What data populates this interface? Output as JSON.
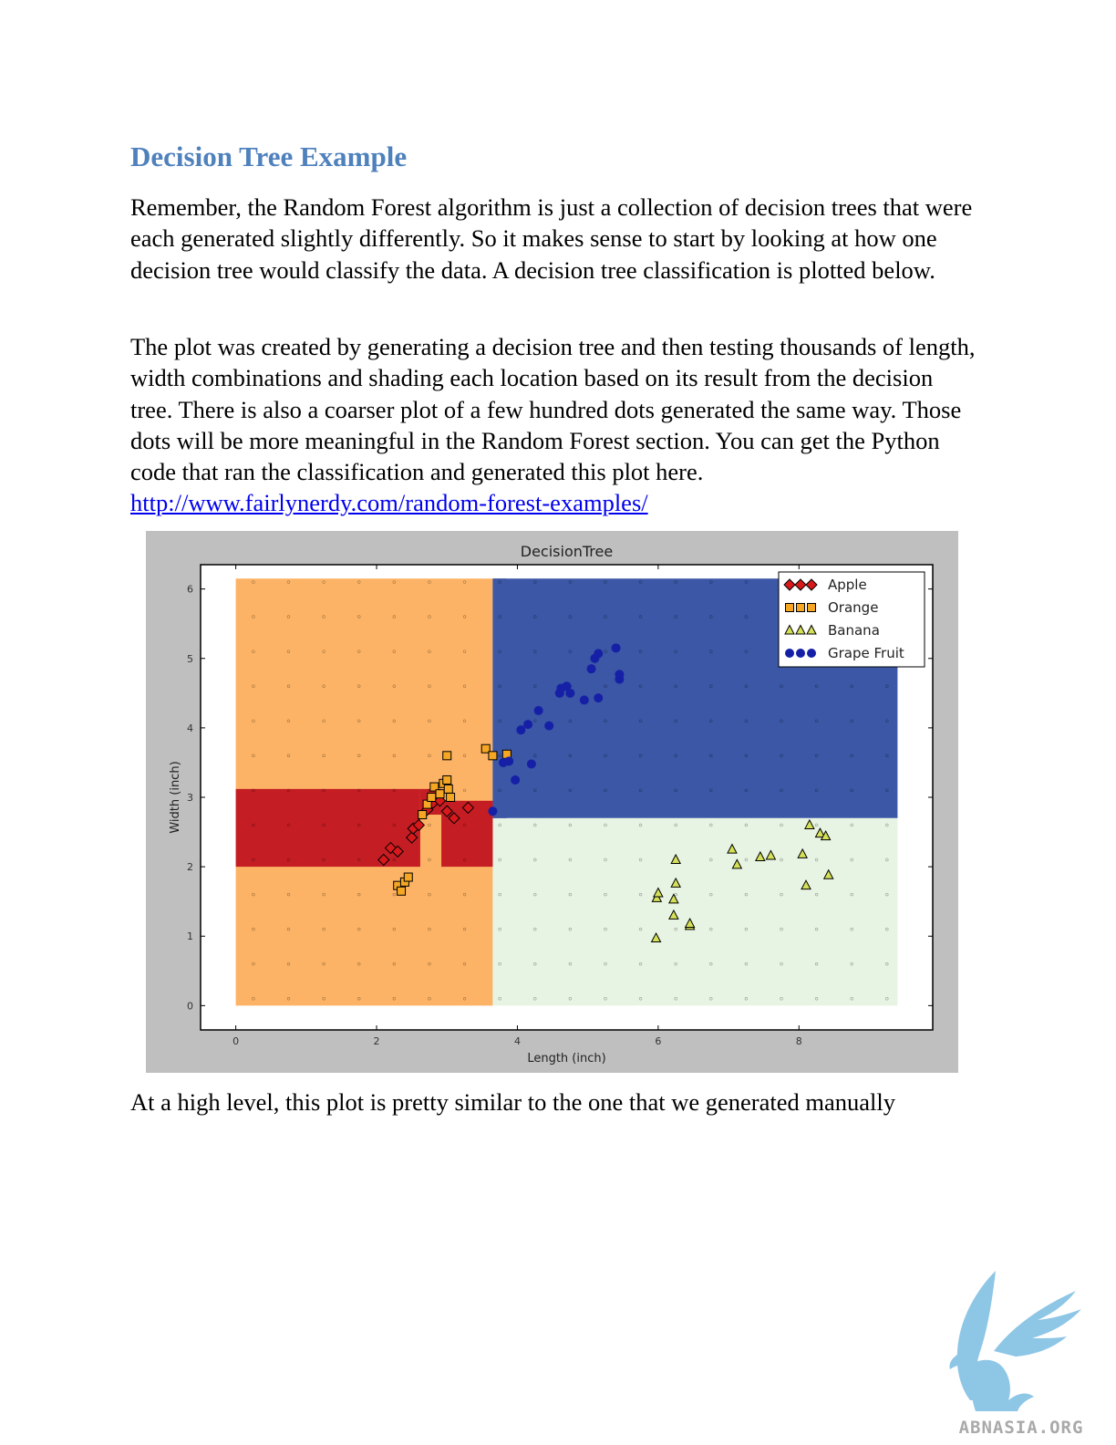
{
  "doc": {
    "heading": "Decision Tree Example",
    "para1": "Remember, the Random Forest algorithm is just a collection of decision trees that were each generated slightly differently.  So it makes sense to start by looking at how one decision tree would classify the data.  A decision tree classification is plotted below.",
    "para2_text": "The plot was created by generating a decision tree and then testing thousands of length, width combinations and shading each location based on its result from the decision tree.  There is also a coarser plot of a few hundred dots generated the same way.  Those dots will be more meaningful in the Random Forest section.  You can get the Python code that ran the classification and generated this plot here.  ",
    "para2_link": "http://www.fairlynerdy.com/random-forest-examples/",
    "para3": "At a high level, this plot is pretty similar to the one that we generated manually"
  },
  "logo": {
    "text": "ABNASIA.ORG",
    "icon": "griffin-logo-icon"
  },
  "chart_data": {
    "type": "scatter",
    "title": "DecisionTree",
    "xlabel": "Length (inch)",
    "ylabel": "Width (inch)",
    "xlim": [
      -0.5,
      9.9
    ],
    "ylim": [
      -0.35,
      6.35
    ],
    "xticks": [
      0,
      2,
      4,
      6,
      8
    ],
    "yticks": [
      0,
      1,
      2,
      3,
      4,
      5,
      6
    ],
    "legend_position": "top-right",
    "regions": [
      {
        "class": "Orange",
        "x": [
          0,
          3.65
        ],
        "y": [
          0,
          6.15
        ],
        "color": "#fdb365"
      },
      {
        "class": "Grape Fruit",
        "x": [
          3.65,
          9.4
        ],
        "y": [
          2.7,
          6.15
        ],
        "color": "#3b57a5"
      },
      {
        "class": "Banana",
        "x": [
          3.65,
          9.4
        ],
        "y": [
          0,
          2.7
        ],
        "color": "#e8f4e3"
      },
      {
        "class": "Grape Fruit",
        "x": [
          3.65,
          3.85
        ],
        "y": [
          2.7,
          6.15
        ],
        "color": "#3b57a5"
      },
      {
        "class": "Apple",
        "x": [
          0,
          2.62
        ],
        "y": [
          2.0,
          3.12
        ],
        "color": "#c41e24"
      },
      {
        "class": "Apple",
        "x": [
          2.62,
          2.92
        ],
        "y": [
          2.75,
          3.12
        ],
        "color": "#c41e24"
      },
      {
        "class": "Apple",
        "x": [
          2.92,
          3.65
        ],
        "y": [
          2.0,
          2.95
        ],
        "color": "#c41e24"
      }
    ],
    "series": [
      {
        "name": "Apple",
        "marker": "diamond",
        "color": "#d7191c",
        "points": [
          [
            2.1,
            2.1
          ],
          [
            2.2,
            2.27
          ],
          [
            2.3,
            2.22
          ],
          [
            2.5,
            2.42
          ],
          [
            2.52,
            2.55
          ],
          [
            2.6,
            2.6
          ],
          [
            2.72,
            2.82
          ],
          [
            2.8,
            2.92
          ],
          [
            2.9,
            2.95
          ],
          [
            3.0,
            2.8
          ],
          [
            3.1,
            2.7
          ],
          [
            3.3,
            2.85
          ]
        ]
      },
      {
        "name": "Orange",
        "marker": "square",
        "color": "#f5a623",
        "points": [
          [
            2.3,
            1.73
          ],
          [
            2.35,
            1.65
          ],
          [
            2.4,
            1.78
          ],
          [
            2.45,
            1.85
          ],
          [
            2.65,
            2.75
          ],
          [
            2.72,
            2.9
          ],
          [
            2.78,
            3.0
          ],
          [
            2.82,
            3.15
          ],
          [
            2.9,
            3.05
          ],
          [
            2.95,
            3.2
          ],
          [
            3.0,
            3.25
          ],
          [
            3.02,
            3.12
          ],
          [
            3.05,
            3.0
          ],
          [
            3.0,
            3.6
          ],
          [
            3.55,
            3.7
          ],
          [
            3.65,
            3.6
          ],
          [
            3.85,
            3.62
          ]
        ]
      },
      {
        "name": "Banana",
        "marker": "triangle",
        "color": "#d4e157",
        "points": [
          [
            5.97,
            0.97
          ],
          [
            5.98,
            1.55
          ],
          [
            6.0,
            1.62
          ],
          [
            6.22,
            1.3
          ],
          [
            6.22,
            1.53
          ],
          [
            6.25,
            1.76
          ],
          [
            6.25,
            2.1
          ],
          [
            6.45,
            1.15
          ],
          [
            6.45,
            1.18
          ],
          [
            7.05,
            2.25
          ],
          [
            7.12,
            2.03
          ],
          [
            7.45,
            2.14
          ],
          [
            7.6,
            2.16
          ],
          [
            8.05,
            2.18
          ],
          [
            8.1,
            1.73
          ],
          [
            8.15,
            2.6
          ],
          [
            8.3,
            2.48
          ],
          [
            8.38,
            2.44
          ],
          [
            8.42,
            1.88
          ]
        ]
      },
      {
        "name": "Grape Fruit",
        "marker": "circle",
        "color": "#1520a6",
        "points": [
          [
            3.65,
            2.8
          ],
          [
            3.8,
            3.5
          ],
          [
            3.88,
            3.52
          ],
          [
            3.97,
            3.25
          ],
          [
            4.05,
            3.97
          ],
          [
            4.15,
            4.05
          ],
          [
            4.2,
            3.48
          ],
          [
            4.3,
            4.25
          ],
          [
            4.45,
            4.03
          ],
          [
            4.6,
            4.5
          ],
          [
            4.62,
            4.57
          ],
          [
            4.7,
            4.6
          ],
          [
            4.75,
            4.5
          ],
          [
            4.95,
            4.4
          ],
          [
            5.05,
            4.85
          ],
          [
            5.1,
            5.0
          ],
          [
            5.15,
            5.07
          ],
          [
            5.15,
            4.43
          ],
          [
            5.4,
            5.15
          ],
          [
            5.45,
            4.7
          ],
          [
            5.45,
            4.77
          ]
        ]
      }
    ]
  }
}
